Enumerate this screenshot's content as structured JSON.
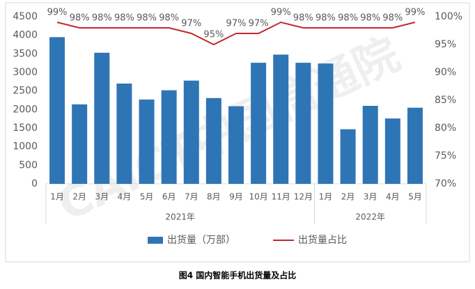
{
  "chart_data": {
    "type": "bar-line",
    "caption": "图4  国内智能手机出货量及占比",
    "watermark": "CAICT中国信通院",
    "categories": [
      "1月",
      "2月",
      "3月",
      "4月",
      "5月",
      "6月",
      "7月",
      "8月",
      "9月",
      "10月",
      "11月",
      "12月",
      "1月",
      "2月",
      "3月",
      "4月",
      "5月"
    ],
    "x_groups": [
      {
        "label": "2021年",
        "span": 12
      },
      {
        "label": "2022年",
        "span": 5
      }
    ],
    "series": [
      {
        "name": "出货量（万部）",
        "color": "#2e75b6",
        "type": "bar",
        "values": [
          3950,
          2140,
          3530,
          2700,
          2270,
          2520,
          2780,
          2310,
          2090,
          3260,
          3480,
          3260,
          3240,
          1470,
          2100,
          1760,
          2050
        ]
      },
      {
        "name": "出货量占比",
        "color": "#c0282e",
        "type": "line",
        "axis": "y2",
        "values": [
          99,
          98,
          98,
          98,
          98,
          98,
          97,
          95,
          97,
          97,
          99,
          98,
          98,
          98,
          98,
          98,
          99
        ],
        "value_labels": [
          "99%",
          "98%",
          "98%",
          "98%",
          "98%",
          "98%",
          "97%",
          "95%",
          "97%",
          "97%",
          "99%",
          "98%",
          "98%",
          "98%",
          "98%",
          "98%",
          "99%"
        ]
      }
    ],
    "ylim": [
      0,
      4500
    ],
    "yticks": [
      0,
      500,
      1000,
      1500,
      2000,
      2500,
      3000,
      3500,
      4000,
      4500
    ],
    "y2lim": [
      70,
      100
    ],
    "y2ticks": [
      {
        "value": 70,
        "label": "70%"
      },
      {
        "value": 75,
        "label": "75%"
      },
      {
        "value": 80,
        "label": "80%"
      },
      {
        "value": 85,
        "label": "85%"
      },
      {
        "value": 90,
        "label": "90%"
      },
      {
        "value": 95,
        "label": "95%"
      },
      {
        "value": 100,
        "label": "100%"
      }
    ],
    "legend": "bottom"
  }
}
